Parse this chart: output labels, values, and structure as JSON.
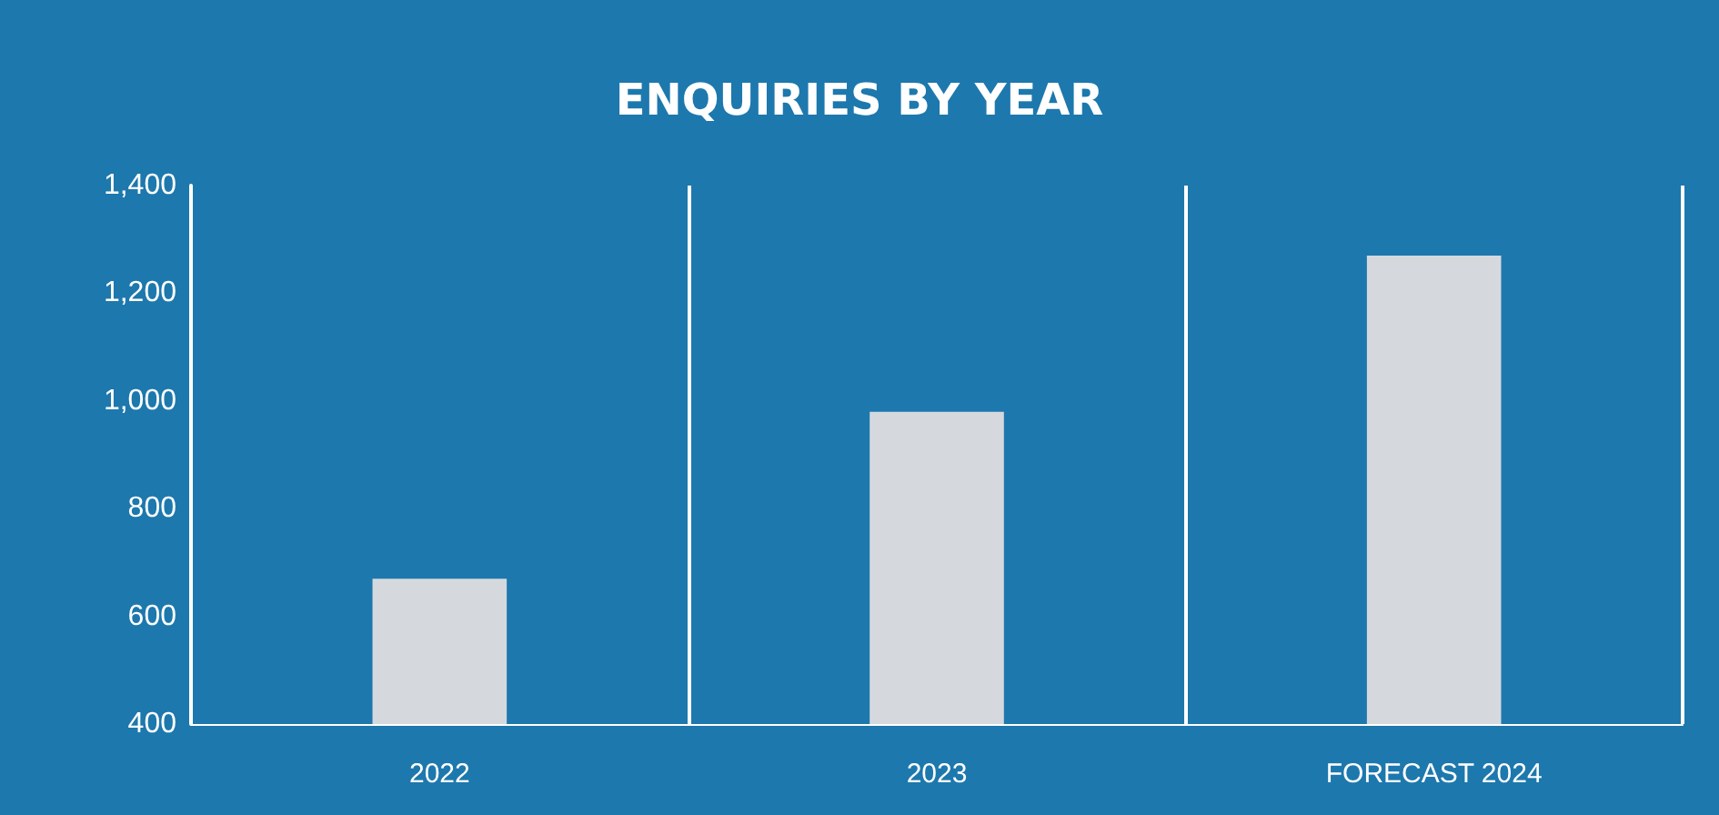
{
  "chart_data": {
    "type": "bar",
    "title": "ENQUIRIES BY YEAR",
    "categories": [
      "2022",
      "2023",
      "FORECAST 2024"
    ],
    "values": [
      670,
      980,
      1270
    ],
    "color": "#d5d9de",
    "ylim": [
      400,
      1400
    ],
    "yticks": [
      400,
      600,
      800,
      {
        "value": 1000,
        "label": "1,000"
      },
      {
        "value": 1200,
        "label": "1,200"
      },
      {
        "value": 1400,
        "label": "1,400"
      }
    ],
    "grid": "x"
  }
}
